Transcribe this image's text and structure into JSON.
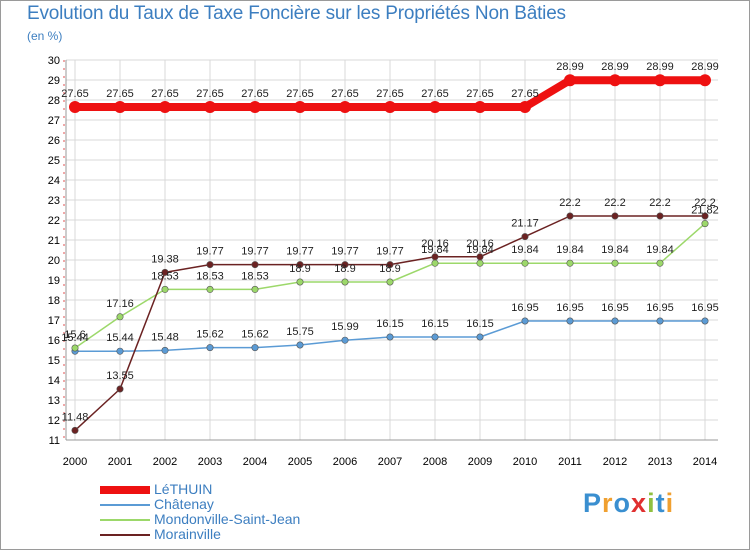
{
  "chart_data": {
    "type": "line",
    "title": "Evolution du Taux de Taxe Foncière sur les Propriétés Non Bâties",
    "ylabel": "(en %)",
    "xlabel": "",
    "ylim": [
      11,
      30
    ],
    "yticks": [
      "11",
      "12",
      "13",
      "14",
      "15",
      "16",
      "17",
      "18",
      "19",
      "20",
      "21",
      "22",
      "23",
      "24",
      "25",
      "26",
      "27",
      "28",
      "29",
      "30"
    ],
    "categories": [
      "2000",
      "2001",
      "2002",
      "2003",
      "2004",
      "2005",
      "2006",
      "2007",
      "2008",
      "2009",
      "2010",
      "2011",
      "2012",
      "2013",
      "2014"
    ],
    "grid": true,
    "legend_position": "bottom-left",
    "series": [
      {
        "name": "LéTHUIN",
        "color": "#ee1111",
        "thick": true,
        "values": [
          27.65,
          27.65,
          27.65,
          27.65,
          27.65,
          27.65,
          27.65,
          27.65,
          27.65,
          27.65,
          27.65,
          28.99,
          28.99,
          28.99,
          28.99
        ],
        "labels": [
          "27.65",
          "27.65",
          "27.65",
          "27.65",
          "27.65",
          "27.65",
          "27.65",
          "27.65",
          "27.65",
          "27.65",
          "27.65",
          "28.99",
          "28.99",
          "28.99",
          "28.99"
        ]
      },
      {
        "name": "Châtenay",
        "color": "#5b9bd5",
        "thick": false,
        "values": [
          15.44,
          15.44,
          15.48,
          15.62,
          15.62,
          15.75,
          15.99,
          16.15,
          16.15,
          16.15,
          16.95,
          16.95,
          16.95,
          16.95,
          16.95
        ],
        "labels": [
          "15.44",
          "15.44",
          "15.48",
          "15.62",
          "15.62",
          "15.75",
          "15.99",
          "16.15",
          "16.15",
          "16.15",
          "16.95",
          "16.95",
          "16.95",
          "16.95",
          "16.95"
        ]
      },
      {
        "name": "Mondonville-Saint-Jean",
        "color": "#9cd86a",
        "thick": false,
        "values": [
          15.6,
          17.16,
          18.53,
          18.53,
          18.53,
          18.9,
          18.9,
          18.9,
          19.84,
          19.84,
          19.84,
          19.84,
          19.84,
          19.84,
          21.82
        ],
        "labels": [
          "15.6",
          "17.16",
          "18.53",
          "18.53",
          "18.53",
          "18.9",
          "18.9",
          "18.9",
          "19.84",
          "19.84",
          "19.84",
          "19.84",
          "19.84",
          "19.84",
          "21.82"
        ]
      },
      {
        "name": "Morainville",
        "color": "#6b2222",
        "thick": false,
        "values": [
          11.48,
          13.55,
          19.38,
          19.77,
          19.77,
          19.77,
          19.77,
          19.77,
          20.16,
          20.16,
          21.17,
          22.2,
          22.2,
          22.2,
          22.2
        ],
        "labels": [
          "11.48",
          "13.55",
          "19.38",
          "19.77",
          "19.77",
          "19.77",
          "19.77",
          "19.77",
          "20.16",
          "20.16",
          "21.17",
          "22.2",
          "22.2",
          "22.2",
          "22.2"
        ]
      }
    ]
  },
  "logo": {
    "letters": [
      "P",
      "r",
      "o",
      "x",
      "i",
      "t",
      "i"
    ],
    "colors": [
      "#3a8fd0",
      "#f0a030",
      "#3a8fd0",
      "#e03030",
      "#90c040",
      "#3a8fd0",
      "#f0a030"
    ]
  }
}
